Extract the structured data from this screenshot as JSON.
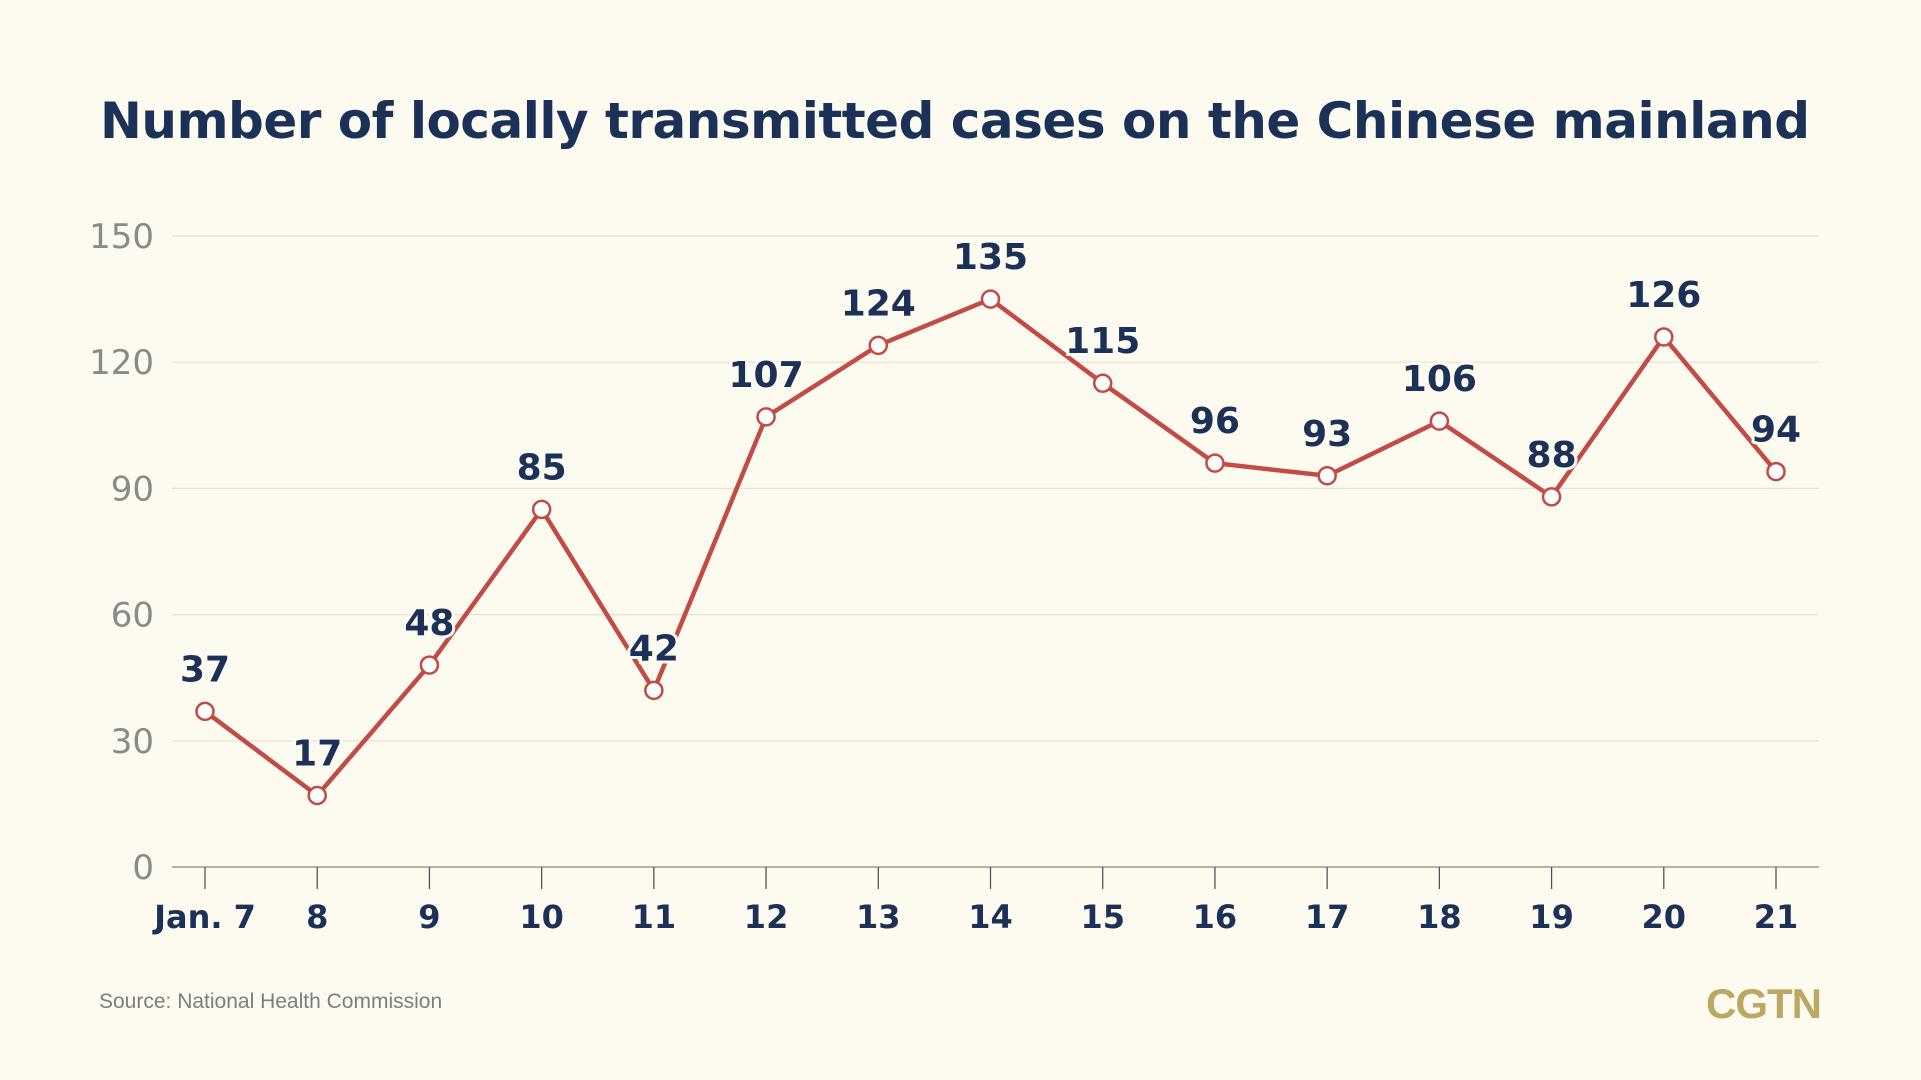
{
  "chart_data": {
    "type": "line",
    "title": "Number of locally transmitted cases on the Chinese mainland",
    "categories": [
      "Jan. 7",
      "8",
      "9",
      "10",
      "11",
      "12",
      "13",
      "14",
      "15",
      "16",
      "17",
      "18",
      "19",
      "20",
      "21"
    ],
    "series": [
      {
        "values": [
          37,
          17,
          48,
          85,
          42,
          107,
          124,
          135,
          115,
          96,
          93,
          106,
          88,
          126,
          94
        ]
      }
    ],
    "yticks": [
      "0",
      "30",
      "60",
      "90",
      "120",
      "150"
    ],
    "ylim": [
      0,
      150
    ],
    "grid": true,
    "xlabel": "",
    "ylabel": "",
    "colors": {
      "line": "#c24b45",
      "labels": "#1c3158",
      "ticks": "#8a8a8a",
      "grid": "#e4e1d6",
      "background": "#fdfaf0"
    }
  },
  "source": "Source: National Health Commission",
  "logo": "CGTN"
}
